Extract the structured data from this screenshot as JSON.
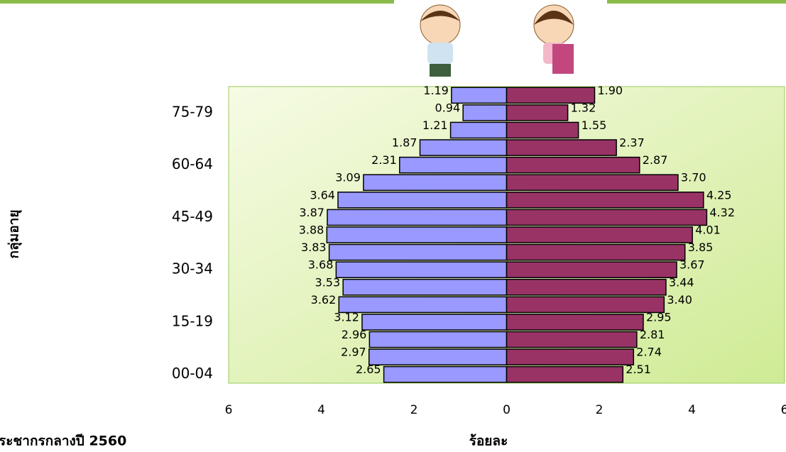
{
  "chart_data": {
    "type": "pyramid",
    "categories": [
      "00-04",
      null,
      null,
      "15-19",
      null,
      null,
      "30-34",
      null,
      null,
      "45-49",
      null,
      null,
      "60-64",
      null,
      null,
      "75-79",
      null
    ],
    "series": [
      {
        "color": "#9999ff",
        "side": "left",
        "values": [
          2.65,
          2.97,
          2.96,
          3.12,
          3.62,
          3.53,
          3.68,
          3.83,
          3.88,
          3.87,
          3.64,
          3.09,
          2.31,
          1.87,
          1.21,
          0.94,
          1.19
        ],
        "value_labels": [
          "2.65",
          "2.97",
          "2.96",
          "3.12",
          "3.62",
          "3.53",
          "3.68",
          "3.83",
          "3.88",
          "3.87",
          "3.64",
          "3.09",
          "2.31",
          "1.87",
          "1.21",
          "0.94",
          "1.19"
        ]
      },
      {
        "color": "#993366",
        "side": "right",
        "values": [
          2.51,
          2.74,
          2.81,
          2.95,
          3.4,
          3.44,
          3.67,
          3.85,
          4.01,
          4.32,
          4.25,
          3.7,
          2.87,
          2.37,
          1.55,
          1.32,
          1.9
        ],
        "value_labels": [
          "2.51",
          "2.74",
          "2.81",
          "2.95",
          "3.40",
          "3.44",
          "3.67",
          "3.85",
          "4.01",
          "4.32",
          "4.25",
          "3.70",
          "2.87",
          "2.37",
          "1.55",
          "1.32",
          "1.90"
        ]
      }
    ],
    "xlim": [
      -6,
      6
    ],
    "xticks": [
      {
        "value": -6,
        "label": "6"
      },
      {
        "value": -4,
        "label": "4"
      },
      {
        "value": -2,
        "label": "2"
      },
      0,
      2,
      4,
      6
    ],
    "x_label": "ร้อยละ",
    "y_label": "กลุ่มอายุ",
    "footnote": "ระชากรกลางปี 2560"
  }
}
